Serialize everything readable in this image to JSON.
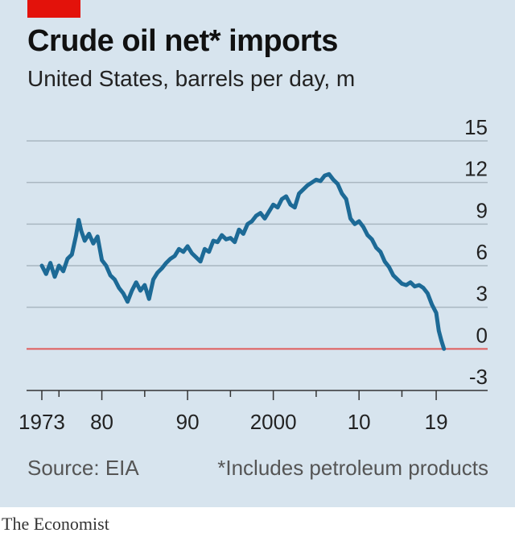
{
  "header": {
    "title": "Crude oil net* imports",
    "subtitle": "United States, barrels per day, m"
  },
  "footer": {
    "source": "Source: EIA",
    "footnote": "*Includes petroleum products",
    "brand": "The Economist"
  },
  "colors": {
    "accent": "#e3120b",
    "line": "#1d6a96",
    "zero_line": "#e05b5b",
    "background": "#d7e4ee",
    "grid": "#a9b7c1"
  },
  "chart_data": {
    "type": "line",
    "title": "Crude oil net* imports",
    "subtitle": "United States, barrels per day, m",
    "xlabel": "",
    "ylabel": "",
    "xlim": [
      1971.5,
      2025
    ],
    "ylim": [
      -3,
      15
    ],
    "y_ticks": [
      15,
      12,
      9,
      6,
      3,
      0,
      -3
    ],
    "x_tick_labels": [
      {
        "x": 1973,
        "label": "1973"
      },
      {
        "x": 1980,
        "label": "80"
      },
      {
        "x": 1990,
        "label": "90"
      },
      {
        "x": 2000,
        "label": "2000"
      },
      {
        "x": 2010,
        "label": "10"
      },
      {
        "x": 2019,
        "label": "19"
      }
    ],
    "x_minor_ticks": [
      1975,
      1985,
      1995,
      2005,
      2015
    ],
    "grid": true,
    "legend": "none",
    "series": [
      {
        "x": [
          1973,
          1973.5,
          1974,
          1974.5,
          1975,
          1975.5,
          1976,
          1976.5,
          1977,
          1977.3,
          1977.6,
          1978,
          1978.5,
          1979,
          1979.5,
          1980,
          1980.5,
          1981,
          1981.5,
          1982,
          1982.5,
          1983,
          1983.5,
          1984,
          1984.5,
          1985,
          1985.5,
          1986,
          1986.5,
          1987,
          1987.5,
          1988,
          1988.5,
          1989,
          1989.5,
          1990,
          1990.5,
          1991,
          1991.5,
          1992,
          1992.5,
          1993,
          1993.5,
          1994,
          1994.5,
          1995,
          1995.5,
          1996,
          1996.5,
          1997,
          1997.5,
          1998,
          1998.5,
          1999,
          1999.5,
          2000,
          2000.5,
          2001,
          2001.5,
          2002,
          2002.5,
          2003,
          2003.5,
          2004,
          2004.5,
          2005,
          2005.5,
          2006,
          2006.5,
          2007,
          2007.5,
          2008,
          2008.5,
          2009,
          2009.5,
          2010,
          2010.5,
          2011,
          2011.5,
          2012,
          2012.5,
          2013,
          2013.5,
          2014,
          2014.5,
          2015,
          2015.5,
          2016,
          2016.5,
          2017,
          2017.5,
          2018,
          2018.5,
          2019,
          2019.3,
          2019.6,
          2019.9
        ],
        "values": [
          6.0,
          5.4,
          6.2,
          5.2,
          6.0,
          5.6,
          6.5,
          6.8,
          8.2,
          9.3,
          8.5,
          7.8,
          8.3,
          7.6,
          8.1,
          6.4,
          6.0,
          5.3,
          5.0,
          4.4,
          4.0,
          3.4,
          4.2,
          4.8,
          4.2,
          4.6,
          3.6,
          5.0,
          5.5,
          5.8,
          6.2,
          6.5,
          6.7,
          7.2,
          7.0,
          7.4,
          6.9,
          6.6,
          6.3,
          7.2,
          7.0,
          7.8,
          7.7,
          8.2,
          7.9,
          8.0,
          7.7,
          8.6,
          8.3,
          9.0,
          9.2,
          9.6,
          9.8,
          9.4,
          9.9,
          10.4,
          10.2,
          10.8,
          11.0,
          10.4,
          10.2,
          11.2,
          11.5,
          11.8,
          12.0,
          12.2,
          12.1,
          12.5,
          12.6,
          12.2,
          11.9,
          11.2,
          10.8,
          9.4,
          9.0,
          9.2,
          8.8,
          8.2,
          7.9,
          7.3,
          7.0,
          6.3,
          5.9,
          5.3,
          5.0,
          4.7,
          4.6,
          4.8,
          4.5,
          4.6,
          4.4,
          4.0,
          3.2,
          2.6,
          1.3,
          0.6,
          0.0
        ]
      }
    ]
  }
}
